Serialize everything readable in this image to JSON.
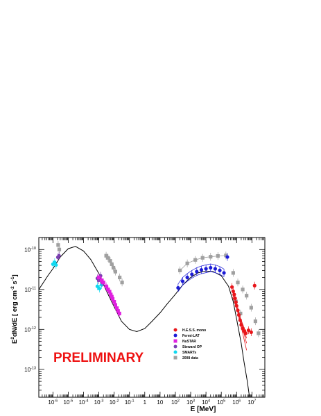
{
  "chart_data": {
    "type": "scatter",
    "title": "",
    "xlabel": "E [MeV]",
    "ylabel_main": "E",
    "ylabel_parts": [
      "E",
      "2",
      "dN/dE [ erg cm",
      "-2",
      " s",
      "-1",
      "]"
    ],
    "xscale": "log",
    "yscale": "log",
    "xlim": [
      1.2e-07,
      70000000.0
    ],
    "ylim": [
      2e-14,
      2e-10
    ],
    "grid": false,
    "x_ticks": [
      {
        "base": "10",
        "exp": "-6",
        "value": 1e-06
      },
      {
        "base": "10",
        "exp": "-5",
        "value": 1e-05
      },
      {
        "base": "10",
        "exp": "-4",
        "value": 0.0001
      },
      {
        "base": "10",
        "exp": "-3",
        "value": 0.001
      },
      {
        "base": "10",
        "exp": "-2",
        "value": 0.01
      },
      {
        "base": "10",
        "exp": "-1",
        "value": 0.1
      },
      {
        "base": "1",
        "exp": "",
        "value": 1
      },
      {
        "base": "10",
        "exp": "",
        "value": 10
      },
      {
        "base": "10",
        "exp": "2",
        "value": 100.0
      },
      {
        "base": "10",
        "exp": "3",
        "value": 1000.0
      },
      {
        "base": "10",
        "exp": "4",
        "value": 10000.0
      },
      {
        "base": "10",
        "exp": "5",
        "value": 100000.0
      },
      {
        "base": "10",
        "exp": "6",
        "value": 1000000.0
      },
      {
        "base": "10",
        "exp": "7",
        "value": 10000000.0
      }
    ],
    "y_ticks": [
      {
        "base": "10",
        "exp": "-13",
        "value": 1e-13
      },
      {
        "base": "10",
        "exp": "-12",
        "value": 1e-12
      },
      {
        "base": "10",
        "exp": "-11",
        "value": 1e-11
      },
      {
        "base": "10",
        "exp": "-10",
        "value": 1e-10
      }
    ],
    "annotation": "PRELIMINARY",
    "legend_position": "bottom-right",
    "legend": [
      {
        "label": "H.E.S.S. mono",
        "color": "#e8161b",
        "marker": "circle"
      },
      {
        "label": "Fermi-LAT",
        "color": "#1b1bd6",
        "marker": "circle"
      },
      {
        "label": "NuSTAR",
        "color": "#e020e0",
        "marker": "square"
      },
      {
        "label": "Steward OP",
        "color": "#7a3fb0",
        "marker": "circle"
      },
      {
        "label": "SMARTs",
        "color": "#10d8f0",
        "marker": "circle"
      },
      {
        "label": "2008 data",
        "color": "#a0a0a0",
        "marker": "square"
      }
    ],
    "model_curve": {
      "color": "#000000",
      "points": [
        [
          1.2e-07,
          1e-11
        ],
        [
          5e-07,
          2.3e-11
        ],
        [
          1e-06,
          3.3e-11
        ],
        [
          3e-06,
          6.5e-11
        ],
        [
          1e-05,
          1.05e-10
        ],
        [
          3e-05,
          1.2e-10
        ],
        [
          0.0001,
          9.2e-11
        ],
        [
          0.0003,
          5.6e-11
        ],
        [
          0.001,
          2.5e-11
        ],
        [
          0.003,
          9.5e-12
        ],
        [
          0.01,
          3.7e-12
        ],
        [
          0.03,
          1.6e-12
        ],
        [
          0.1,
          1e-12
        ],
        [
          0.3,
          8.8e-13
        ],
        [
          1,
          1.05e-12
        ],
        [
          3,
          1.6e-12
        ],
        [
          10,
          2.6e-12
        ],
        [
          30,
          4.4e-12
        ],
        [
          100,
          7.6e-12
        ],
        [
          300,
          1.3e-11
        ],
        [
          1000,
          2e-11
        ],
        [
          3000,
          2.6e-11
        ],
        [
          10000.0,
          2.9e-11
        ],
        [
          30000.0,
          2.8e-11
        ],
        [
          100000.0,
          2.2e-11
        ],
        [
          300000.0,
          1.2e-11
        ],
        [
          600000.0,
          5e-12
        ],
        [
          1000000.0,
          1.8e-12
        ],
        [
          2000000.0,
          4.5e-13
        ],
        [
          3000000.0,
          1.6e-13
        ],
        [
          5000000.0,
          5e-14
        ],
        [
          7000000.0,
          2e-14
        ]
      ]
    },
    "series": [
      {
        "name": "2008 data",
        "color": "#a0a0a0",
        "marker": "square",
        "x": [
          2.2e-06,
          2.6e-06,
          0.003,
          0.004,
          0.0055,
          0.007,
          0.009,
          0.012,
          0.023,
          0.033,
          200,
          600,
          2000.0,
          6000.0,
          20000.0,
          60000.0,
          200000.0,
          600000.0,
          1200000.0,
          2500000.0,
          4500000.0,
          9000000.0,
          17000000.0,
          27000000.0,
          900000.0,
          1800000.0
        ],
        "y": [
          1.3e-10,
          1e-10,
          7e-11,
          6.2e-11,
          5.2e-11,
          4.3e-11,
          3.5e-11,
          2.8e-11,
          2e-11,
          1.5e-11,
          3e-11,
          4.5e-11,
          5.5e-11,
          6.2e-11,
          6.6e-11,
          6.9e-11,
          7.1e-11,
          2.6e-11,
          1.5e-11,
          1e-11,
          7e-12,
          3.5e-12,
          1.6e-12,
          8e-13,
          5e-12,
          2.5e-12
        ]
      },
      {
        "name": "SMARTs",
        "color": "#10d8f0",
        "marker": "circle",
        "x": [
          1e-06,
          1.3e-06,
          1.6e-06,
          0.0008,
          0.0011,
          0.0015
        ],
        "y": [
          4.3e-11,
          4.8e-11,
          4.1e-11,
          1.2e-11,
          1.05e-11,
          1.3e-11
        ]
      },
      {
        "name": "Steward OP",
        "color": "#7a3fb0",
        "marker": "circle",
        "x": [
          2.1e-06,
          2.5e-06,
          0.0008,
          0.001,
          0.0013,
          0.0016
        ],
        "y": [
          6.4e-11,
          7e-11,
          1.9e-11,
          1.7e-11,
          2.2e-11,
          1.5e-11
        ]
      },
      {
        "name": "NuSTAR",
        "color": "#e020e0",
        "marker": "square",
        "x": [
          0.001,
          0.0015,
          0.002,
          0.003,
          0.004,
          0.005,
          0.006,
          0.007,
          0.008,
          0.01,
          0.012,
          0.015,
          0.018,
          0.022
        ],
        "y": [
          2e-11,
          1.7e-11,
          1.5e-11,
          1.2e-11,
          1e-11,
          8.8e-12,
          7.5e-12,
          6.6e-12,
          5.8e-12,
          4.9e-12,
          4.1e-12,
          3.4e-12,
          2.9e-12,
          2.5e-12
        ]
      },
      {
        "name": "Fermi-LAT",
        "color": "#1b1bd6",
        "marker": "circle",
        "x": [
          150,
          300,
          600,
          1200,
          2500,
          5000,
          10000.0,
          20000.0,
          40000.0,
          80000.0,
          150000.0,
          250000.0
        ],
        "y": [
          1.1e-11,
          1.6e-11,
          2e-11,
          2.4e-11,
          2.8e-11,
          3.1e-11,
          3.3e-11,
          3.5e-11,
          3.3e-11,
          3e-11,
          2.6e-11,
          6.5e-11
        ]
      },
      {
        "name": "H.E.S.S. mono",
        "color": "#e8161b",
        "marker": "circle",
        "x": [
          500000.0,
          600000.0,
          700000.0,
          800000.0,
          900000.0,
          1000000.0,
          1200000.0,
          1400000.0,
          1700000.0,
          2000000.0,
          2500000.0,
          3200000.0,
          4000000.0,
          6000000.0,
          9000000.0,
          15000000.0
        ],
        "y": [
          1.15e-11,
          9e-12,
          7.5e-12,
          6e-12,
          4.8e-12,
          3.9e-12,
          3e-12,
          2.3e-12,
          1.7e-12,
          1.3e-12,
          1.05e-12,
          9e-13,
          8e-13,
          9.5e-13,
          8.5e-13,
          1.25e-11
        ]
      }
    ]
  }
}
